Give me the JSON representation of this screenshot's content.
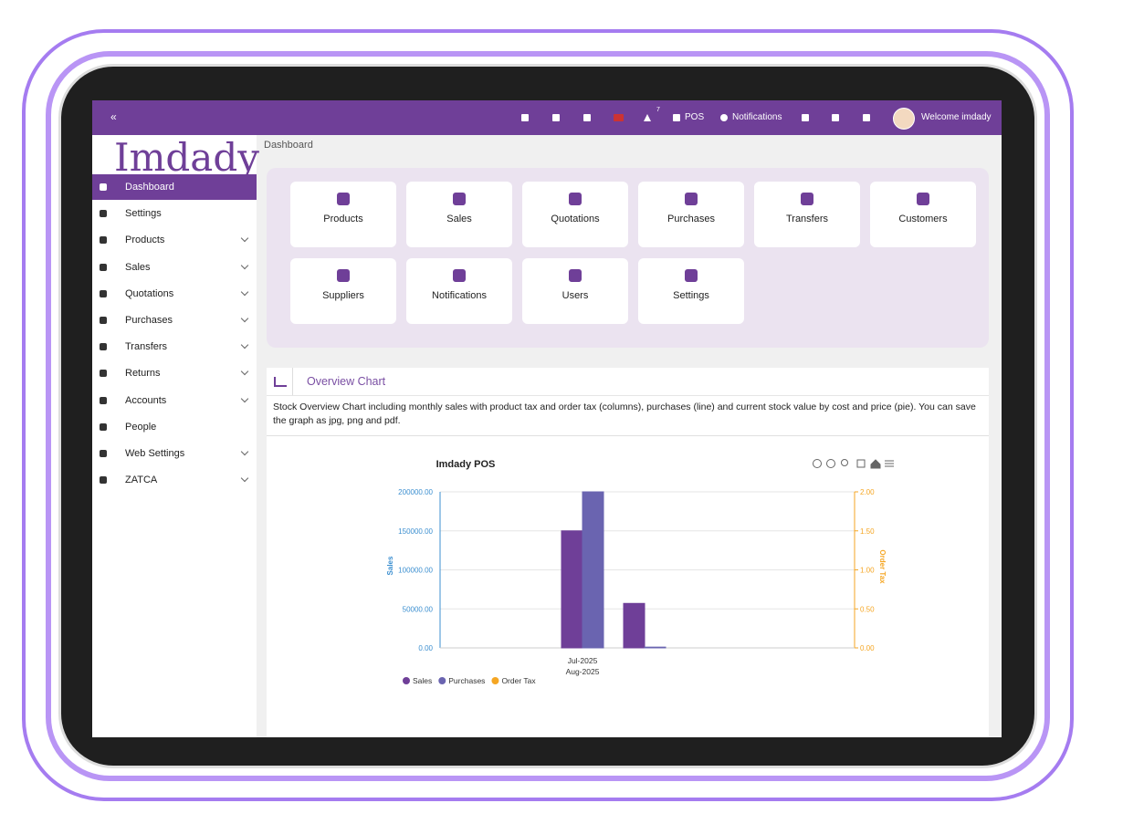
{
  "topbar": {
    "collapse": "«",
    "pos": "POS",
    "alert_count": "7",
    "notifications": "Notifications",
    "welcome": "Welcome imdady"
  },
  "logo": "Imdady",
  "breadcrumb": "Dashboard",
  "sidebar": [
    "Dashboard",
    "Settings",
    "Products",
    "Sales",
    "Quotations",
    "Purchases",
    "Transfers",
    "Returns",
    "Accounts",
    "People",
    "Web Settings",
    "ZATCA"
  ],
  "tiles": [
    "Products",
    "Sales",
    "Quotations",
    "Purchases",
    "Transfers",
    "Customers",
    "Suppliers",
    "Notifications",
    "Users",
    "Settings"
  ],
  "overview": {
    "title": "Overview Chart",
    "description": "Stock Overview Chart including monthly sales with product tax and order tax (columns), purchases (line) and current stock value by cost and price (pie). You can save the graph as jpg, png and pdf."
  },
  "chart_data": {
    "type": "bar",
    "title": "Imdady POS",
    "y_label": "Sales",
    "y2_label": "Order Tax",
    "categories": [
      "Jul-2025",
      "Aug-2025"
    ],
    "series": [
      {
        "name": "Sales",
        "color": "#6f3f98",
        "values": [
          150000,
          57000
        ]
      },
      {
        "name": "Purchases",
        "color": "#6a64b0",
        "values": [
          200000,
          1000
        ]
      },
      {
        "name": "Order Tax",
        "color": "#f5a623",
        "values": [
          0,
          0
        ],
        "axis": "y2"
      }
    ],
    "ylim": [
      0,
      200000
    ],
    "yticks": [
      {
        "value": 0,
        "label": "0.00"
      },
      {
        "value": 50000,
        "label": "50000.00"
      },
      {
        "value": 100000,
        "label": "100000.00"
      },
      {
        "value": 150000,
        "label": "150000.00"
      },
      {
        "value": 200000,
        "label": "200000.00"
      }
    ],
    "y2lim": [
      0,
      2
    ],
    "y2ticks": [
      {
        "value": 0,
        "label": "0.00"
      },
      {
        "value": 0.5,
        "label": "0.50"
      },
      {
        "value": 1,
        "label": "1.00"
      },
      {
        "value": 1.5,
        "label": "1.50"
      },
      {
        "value": 2,
        "label": "2.00"
      }
    ],
    "grid": true
  }
}
